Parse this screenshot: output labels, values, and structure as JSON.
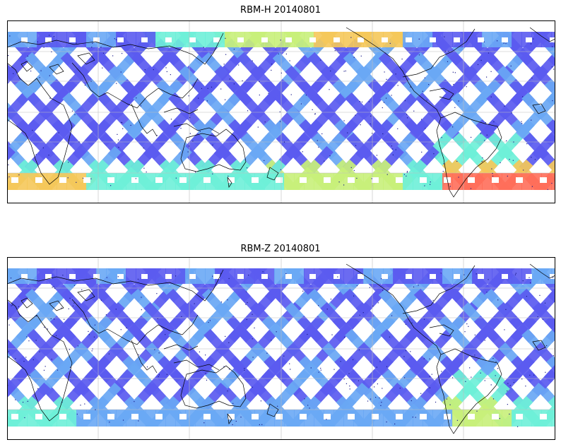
{
  "panels": [
    {
      "id": "top",
      "title": "RBM-H 20140801",
      "variant": "h"
    },
    {
      "id": "bottom",
      "title": "RBM-Z 20140801",
      "variant": "z"
    }
  ],
  "colormap": "jet",
  "colors": {
    "low": "#5b5bf0",
    "mid_low": "#6aa8f5",
    "mid": "#6ef0d8",
    "mid_high": "#c8f07a",
    "high": "#f5c85a",
    "max": "#ff6e5a",
    "coastline": "#000000",
    "gridline": "#bdbdbd",
    "frame": "#000000"
  },
  "grid": true,
  "projection": "cylindrical, pacific-centered"
}
